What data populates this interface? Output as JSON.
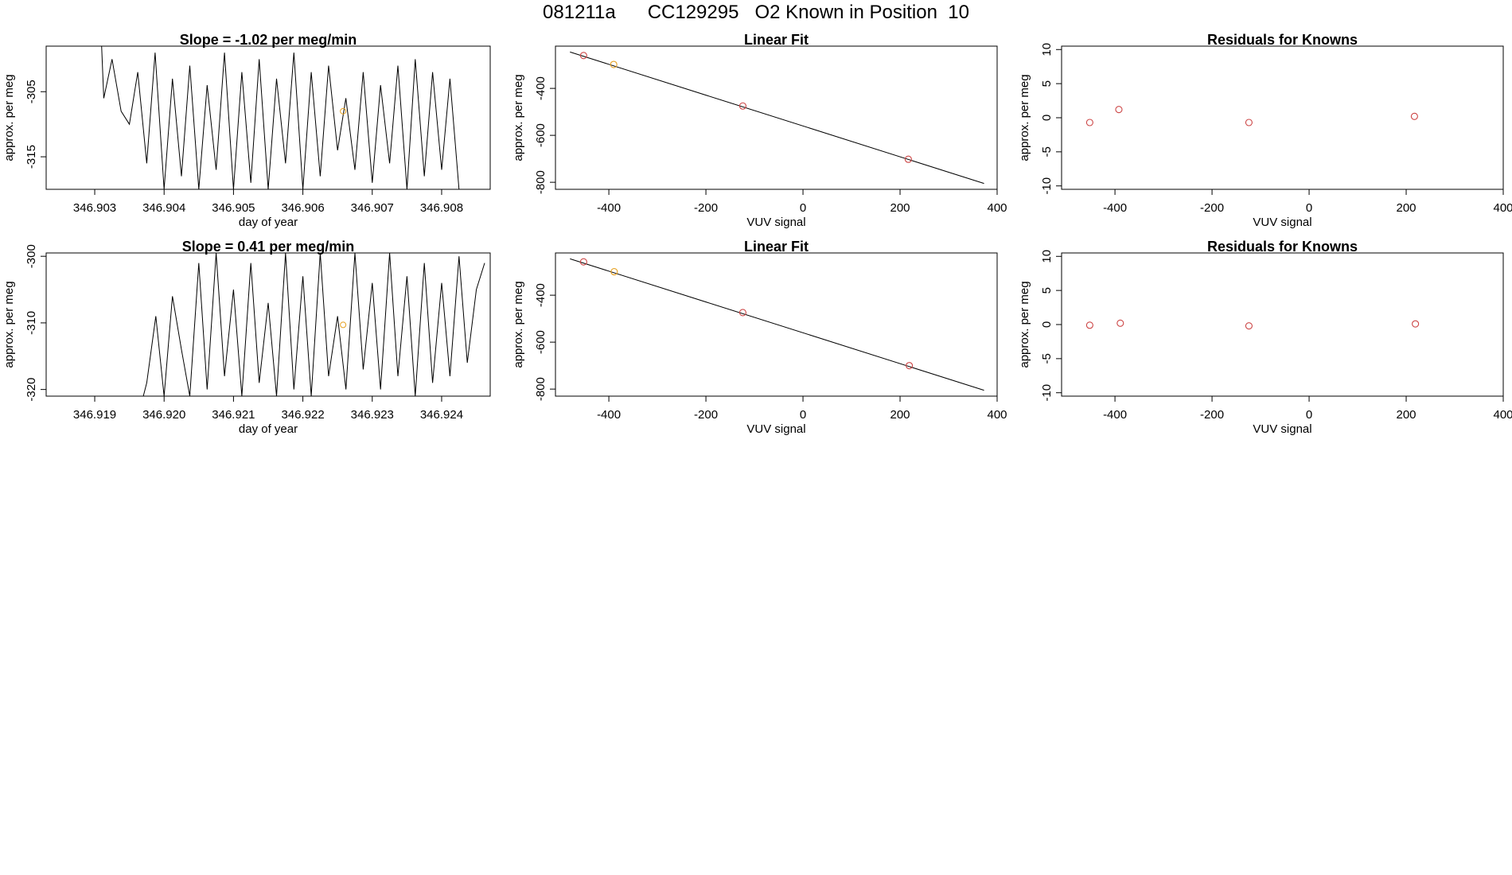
{
  "page": {
    "title": "081211a      CC129295   O2 Known in Position  10"
  },
  "chart_data": [
    {
      "type": "line",
      "title": "Slope =  -1.02  per meg/min",
      "xlabel": "day of year",
      "ylabel": "approx. per meg",
      "xlim": [
        346.9023,
        346.9087
      ],
      "ylim": [
        -320,
        -298
      ],
      "x_ticks": [
        "346.903",
        "346.904",
        "346.905",
        "346.906",
        "346.907",
        "346.908"
      ],
      "y_ticks": [
        "-305",
        "-315"
      ],
      "y_tick_values": [
        -305,
        -315
      ],
      "x_tick_values": [
        346.903,
        346.904,
        346.905,
        346.906,
        346.907,
        346.908
      ],
      "series": [
        {
          "x": [
            346.9031,
            346.90313,
            346.90325,
            346.90338,
            346.9035,
            346.90362,
            346.90375,
            346.90387,
            346.904,
            346.90412,
            346.90425,
            346.90437,
            346.9045,
            346.90462,
            346.90475,
            346.90487,
            346.905,
            346.90512,
            346.90525,
            346.90537,
            346.9055,
            346.90562,
            346.90575,
            346.90587,
            346.906,
            346.90612,
            346.90625,
            346.90637,
            346.9065,
            346.90662,
            346.90675,
            346.90687,
            346.907,
            346.90712,
            346.90725,
            346.90737,
            346.9075,
            346.90762,
            346.90775,
            346.90787,
            346.908,
            346.90812,
            346.90825
          ],
          "y": [
            -298,
            -306,
            -300,
            -308,
            -310,
            -302,
            -316,
            -299,
            -320,
            -303,
            -318,
            -301,
            -320,
            -304,
            -317,
            -299,
            -320,
            -302,
            -319,
            -300,
            -320,
            -303,
            -316,
            -299,
            -320,
            -302,
            -318,
            -301,
            -314,
            -306,
            -317,
            -302,
            -319,
            -304,
            -316,
            -301,
            -320,
            -300,
            -318,
            -302,
            -317,
            -303,
            -320
          ]
        }
      ],
      "marker": {
        "x": 346.90658,
        "y": -308,
        "color": "#e6a020"
      }
    },
    {
      "type": "scatter",
      "title": "Linear Fit",
      "xlabel": "VUV signal",
      "ylabel": "approx. per meg",
      "xlim": [
        -510,
        400
      ],
      "ylim": [
        -830,
        -220
      ],
      "x_ticks": [
        "-400",
        "-200",
        "0",
        "200",
        "400"
      ],
      "x_tick_values": [
        -400,
        -200,
        0,
        200,
        400
      ],
      "y_ticks": [
        "-400",
        "-600",
        "-800"
      ],
      "y_tick_values": [
        -400,
        -600,
        -800
      ],
      "fit_line": {
        "x": [
          -480,
          373
        ],
        "y": [
          -245,
          -805
        ]
      },
      "points": [
        {
          "x": -452,
          "y": -260,
          "color": "#cc4444"
        },
        {
          "x": -390,
          "y": -298,
          "color": "#e6a020"
        },
        {
          "x": -124,
          "y": -475,
          "color": "#cc4444"
        },
        {
          "x": 217,
          "y": -702,
          "color": "#cc4444"
        }
      ]
    },
    {
      "type": "scatter",
      "title": "Residuals for Knowns",
      "xlabel": "VUV signal",
      "ylabel": "approx. per meg",
      "xlim": [
        -510,
        400
      ],
      "ylim": [
        -10.5,
        10.5
      ],
      "x_ticks": [
        "-400",
        "-200",
        "0",
        "200",
        "400"
      ],
      "x_tick_values": [
        -400,
        -200,
        0,
        200,
        400
      ],
      "y_ticks": [
        "10",
        "5",
        "0",
        "-5",
        "-10"
      ],
      "y_tick_values": [
        10,
        5,
        0,
        -5,
        -10
      ],
      "points": [
        {
          "x": -452,
          "y": -0.7,
          "color": "#cc4444"
        },
        {
          "x": -392,
          "y": 1.2,
          "color": "#cc4444"
        },
        {
          "x": -124,
          "y": -0.7,
          "color": "#cc4444"
        },
        {
          "x": 217,
          "y": 0.2,
          "color": "#cc4444"
        }
      ]
    },
    {
      "type": "line",
      "title": "Slope =  0.41  per meg/min",
      "xlabel": "day of year",
      "ylabel": "approx. per meg",
      "xlim": [
        346.9183,
        346.9247
      ],
      "ylim": [
        -321,
        -299.5
      ],
      "x_ticks": [
        "346.919",
        "346.920",
        "346.921",
        "346.922",
        "346.923",
        "346.924"
      ],
      "x_tick_values": [
        346.919,
        346.92,
        346.921,
        346.922,
        346.923,
        346.924
      ],
      "y_ticks": [
        "-300",
        "-310",
        "-320"
      ],
      "y_tick_values": [
        -300,
        -310,
        -320
      ],
      "series": [
        {
          "x": [
            346.9183,
            346.9197,
            346.91975,
            346.91988,
            346.92,
            346.92012,
            346.92025,
            346.92037,
            346.9205,
            346.92062,
            346.92075,
            346.92087,
            346.921,
            346.92112,
            346.92125,
            346.92137,
            346.9215,
            346.92162,
            346.92175,
            346.92187,
            346.922,
            346.92212,
            346.92225,
            346.92237,
            346.9225,
            346.92262,
            346.92275,
            346.92287,
            346.923,
            346.92312,
            346.92325,
            346.92337,
            346.9235,
            346.92362,
            346.92375,
            346.92387,
            346.924,
            346.92412,
            346.92425,
            346.92437,
            346.9245,
            346.92462
          ],
          "y": [
            -321,
            -321,
            -319,
            -309,
            -321,
            -306,
            -314,
            -321,
            -301,
            -320,
            -299.5,
            -318,
            -305,
            -321,
            -301,
            -319,
            -307,
            -321,
            -299.5,
            -320,
            -303,
            -321,
            -299.5,
            -318,
            -309,
            -320,
            -299.5,
            -317,
            -304,
            -320,
            -299.5,
            -318,
            -303,
            -321,
            -301,
            -319,
            -304,
            -318,
            -300,
            -316,
            -305,
            -301
          ]
        }
      ],
      "marker": {
        "x": 346.92258,
        "y": -310.3,
        "color": "#e6a020"
      }
    },
    {
      "type": "scatter",
      "title": "Linear Fit",
      "xlabel": "VUV signal",
      "ylabel": "approx. per meg",
      "xlim": [
        -510,
        400
      ],
      "ylim": [
        -830,
        -220
      ],
      "x_ticks": [
        "-400",
        "-200",
        "0",
        "200",
        "400"
      ],
      "x_tick_values": [
        -400,
        -200,
        0,
        200,
        400
      ],
      "y_ticks": [
        "-400",
        "-600",
        "-800"
      ],
      "y_tick_values": [
        -400,
        -600,
        -800
      ],
      "fit_line": {
        "x": [
          -480,
          373
        ],
        "y": [
          -245,
          -805
        ]
      },
      "points": [
        {
          "x": -452,
          "y": -258,
          "color": "#cc4444"
        },
        {
          "x": -389,
          "y": -300,
          "color": "#e6a020"
        },
        {
          "x": -124,
          "y": -474,
          "color": "#cc4444"
        },
        {
          "x": 219,
          "y": -700,
          "color": "#cc4444"
        }
      ]
    },
    {
      "type": "scatter",
      "title": "Residuals for Knowns",
      "xlabel": "VUV signal",
      "ylabel": "approx. per meg",
      "xlim": [
        -510,
        400
      ],
      "ylim": [
        -10.5,
        10.5
      ],
      "x_ticks": [
        "-400",
        "-200",
        "0",
        "200",
        "400"
      ],
      "x_tick_values": [
        -400,
        -200,
        0,
        200,
        400
      ],
      "y_ticks": [
        "10",
        "5",
        "0",
        "-5",
        "-10"
      ],
      "y_tick_values": [
        10,
        5,
        0,
        -5,
        -10
      ],
      "points": [
        {
          "x": -452,
          "y": -0.1,
          "color": "#cc4444"
        },
        {
          "x": -389,
          "y": 0.2,
          "color": "#cc4444"
        },
        {
          "x": -124,
          "y": -0.2,
          "color": "#cc4444"
        },
        {
          "x": 219,
          "y": 0.1,
          "color": "#cc4444"
        }
      ]
    }
  ]
}
